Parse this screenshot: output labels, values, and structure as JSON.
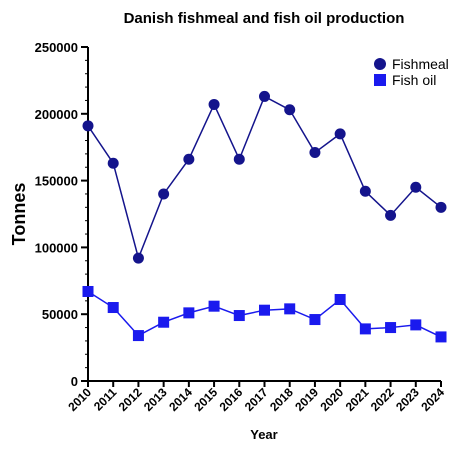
{
  "chart_data": {
    "type": "line",
    "title": "Danish fishmeal and fish oil production",
    "xlabel": "Year",
    "ylabel": "Tonnes",
    "ylim": [
      0,
      250000
    ],
    "yticks": [
      "0",
      "50000",
      "100000",
      "150000",
      "200000",
      "250000"
    ],
    "ytick_values": [
      0,
      50000,
      100000,
      150000,
      200000,
      250000
    ],
    "x": [
      "2010",
      "2011",
      "2012",
      "2013",
      "2014",
      "2015",
      "2016",
      "2017",
      "2018",
      "2019",
      "2020",
      "2021",
      "2022",
      "2023",
      "2024"
    ],
    "grid": false,
    "legend_position": "top-right",
    "series": [
      {
        "name": "Fishmeal",
        "marker": "circle",
        "color": "#14148c",
        "values": [
          191000,
          163000,
          92000,
          140000,
          166000,
          207000,
          166000,
          213000,
          203000,
          171000,
          185000,
          142000,
          124000,
          145000,
          130000
        ]
      },
      {
        "name": "Fish oil",
        "marker": "square",
        "color": "#1a1aee",
        "values": [
          67000,
          55000,
          34000,
          44000,
          51000,
          56000,
          49000,
          53000,
          54000,
          46000,
          61000,
          39000,
          40000,
          42000,
          33000
        ]
      }
    ]
  }
}
